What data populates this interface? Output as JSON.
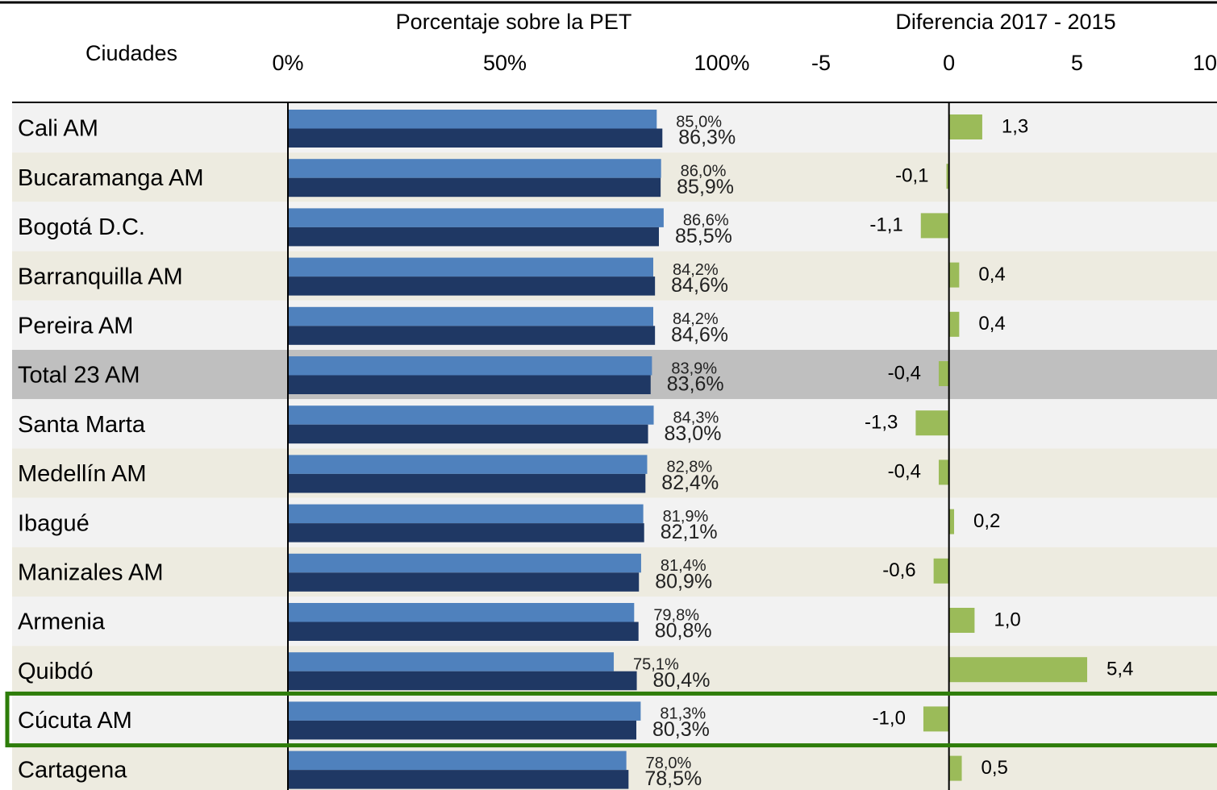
{
  "chart_data": [
    {
      "type": "bar",
      "title": "Porcentaje sobre la PET",
      "ylabel": "Ciudades",
      "categories": [
        "Cali AM",
        "Bucaramanga AM",
        "Bogotá D.C.",
        "Barranquilla AM",
        "Pereira AM",
        "Total 23 AM",
        "Santa Marta",
        "Medellín AM",
        "Ibagué",
        "Manizales AM",
        "Armenia",
        "Quibdó",
        "Cúcuta AM",
        "Cartagena"
      ],
      "series": [
        {
          "color": "#4f81bd",
          "values": [
            85.0,
            86.0,
            86.6,
            84.2,
            84.2,
            83.9,
            84.3,
            82.8,
            81.9,
            81.4,
            79.8,
            75.1,
            81.3,
            78.0
          ],
          "value_labels": [
            "85,0%",
            "86,0%",
            "86,6%",
            "84,2%",
            "84,2%",
            "83,9%",
            "84,3%",
            "82,8%",
            "81,9%",
            "81,4%",
            "79,8%",
            "75,1%",
            "81,3%",
            "78,0%"
          ]
        },
        {
          "color": "#1f3864",
          "values": [
            86.3,
            85.9,
            85.5,
            84.6,
            84.6,
            83.6,
            83.0,
            82.4,
            82.1,
            80.9,
            80.8,
            80.4,
            80.3,
            78.5
          ],
          "value_labels": [
            "86,3%",
            "85,9%",
            "85,5%",
            "84,6%",
            "84,6%",
            "83,6%",
            "83,0%",
            "82,4%",
            "82,1%",
            "80,9%",
            "80,8%",
            "80,4%",
            "80,3%",
            "78,5%"
          ]
        }
      ],
      "xlim": [
        0,
        100
      ],
      "xticks": [
        {
          "value": 0,
          "label": "0%"
        },
        {
          "value": 50,
          "label": "50%"
        },
        {
          "value": 100,
          "label": "100%"
        }
      ],
      "total_row": 5,
      "highlight": 12
    },
    {
      "type": "bar",
      "title": "Diferencia 2017 - 2015",
      "color": "#9bbb59",
      "values": [
        1.3,
        -0.1,
        -1.1,
        0.4,
        0.4,
        -0.4,
        -1.3,
        -0.4,
        0.2,
        -0.6,
        1.0,
        5.4,
        -1.0,
        0.5
      ],
      "value_labels": [
        "1,3",
        "-0,1",
        "-1,1",
        "0,4",
        "0,4",
        "-0,4",
        "-1,3",
        "-0,4",
        "0,2",
        "-0,6",
        "1,0",
        "5,4",
        "-1,0",
        "0,5"
      ],
      "xlim": [
        -5,
        10
      ],
      "xticks": [
        -5,
        0,
        5,
        10
      ]
    }
  ]
}
